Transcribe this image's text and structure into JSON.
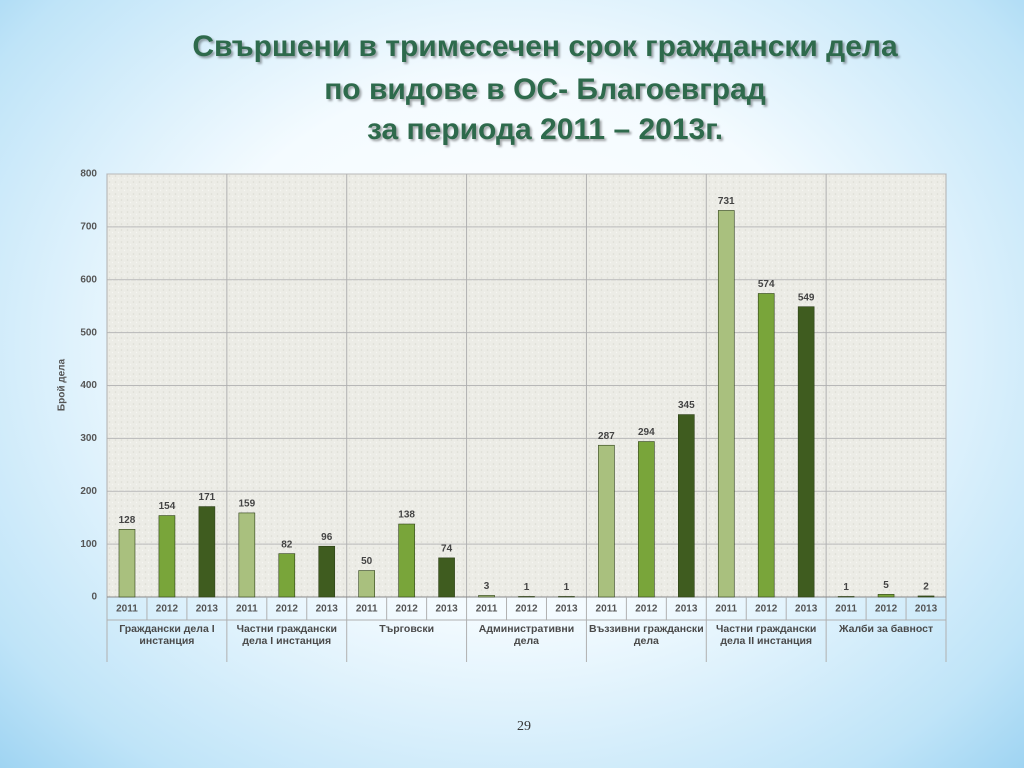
{
  "chart_data": {
    "type": "bar",
    "title": [
      "Свършени в тримесечен срок граждански дела",
      "по видове в ОС- Благоевград",
      "за периода 2011 – 2013г."
    ],
    "y_label": "Брой дела",
    "categories": [
      "Граждански дела I инстанция",
      "Частни граждански дела I инстанция",
      "Търговски",
      "Административни дела",
      "Въззивни граждански дела",
      "Частни граждански дела II инстанция",
      "Жалби за бавност"
    ],
    "series": [
      {
        "name": "2011",
        "color": "#a9c07e",
        "values": [
          128,
          159,
          50,
          3,
          287,
          731,
          1
        ]
      },
      {
        "name": "2012",
        "color": "#79a53a",
        "values": [
          154,
          82,
          138,
          1,
          294,
          574,
          5
        ]
      },
      {
        "name": "2013",
        "color": "#3f5c1f",
        "values": [
          171,
          96,
          74,
          1,
          345,
          549,
          2
        ]
      }
    ],
    "ylim": [
      0,
      800
    ],
    "yticks": [
      0,
      100,
      200,
      300,
      400,
      500,
      600,
      700,
      800
    ],
    "grid": true,
    "page_number": "29"
  }
}
